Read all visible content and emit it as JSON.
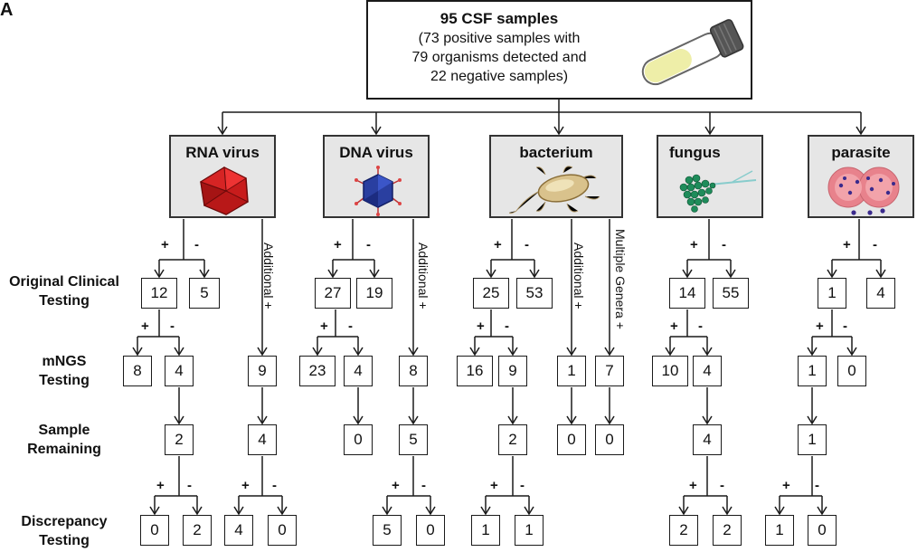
{
  "panel_label": "A",
  "top": {
    "title": "95 CSF samples",
    "lines": [
      "(73 positive samples with",
      "79 organisms detected and",
      "22 negative samples)"
    ],
    "tube_icon": "test-tube-icon"
  },
  "row_labels": {
    "original": [
      "Original Clinical",
      "Testing"
    ],
    "mngs": [
      "mNGS",
      "Testing"
    ],
    "remaining": [
      "Sample",
      "Remaining"
    ],
    "discrepancy": [
      "Discrepancy",
      "Testing"
    ]
  },
  "signs": {
    "plus": "+",
    "minus": "-"
  },
  "side_labels": {
    "additional": "Additional +",
    "multiple_genera": "Multiple Genera +"
  },
  "categories": [
    {
      "name": "RNA virus",
      "icon": "rna-virus-icon",
      "original": {
        "pos": "12",
        "neg": "5"
      },
      "mngs": {
        "pos": "8",
        "neg": "4"
      },
      "additional": "9",
      "remaining": {
        "main": "2",
        "additional": "4"
      },
      "discrepancy": {
        "main_pos": "0",
        "main_neg": "2",
        "add_pos": "4",
        "add_neg": "0"
      }
    },
    {
      "name": "DNA virus",
      "icon": "dna-virus-icon",
      "original": {
        "pos": "27",
        "neg": "19"
      },
      "mngs": {
        "pos": "23",
        "neg": "4"
      },
      "additional": "8",
      "remaining": {
        "main": "0",
        "additional": "5"
      },
      "discrepancy": {
        "add_pos": "5",
        "add_neg": "0"
      }
    },
    {
      "name": "bacterium",
      "icon": "bacterium-icon",
      "original": {
        "pos": "25",
        "neg": "53"
      },
      "mngs": {
        "pos": "16",
        "neg": "9"
      },
      "additional": "1",
      "multiple_genera": "7",
      "remaining": {
        "main": "2",
        "additional": "0",
        "multiple": "0"
      },
      "discrepancy": {
        "main_pos": "1",
        "main_neg": "1"
      }
    },
    {
      "name": "fungus",
      "icon": "fungus-icon",
      "original": {
        "pos": "14",
        "neg": "55"
      },
      "mngs": {
        "pos": "10",
        "neg": "4"
      },
      "remaining": {
        "main": "4"
      },
      "discrepancy": {
        "main_pos": "2",
        "main_neg": "2"
      }
    },
    {
      "name": "parasite",
      "icon": "parasite-icon",
      "original": {
        "pos": "1",
        "neg": "4"
      },
      "mngs": {
        "pos": "1",
        "neg": "0"
      },
      "remaining": {
        "main": "1"
      },
      "discrepancy": {
        "main_pos": "1",
        "main_neg": "0"
      }
    }
  ]
}
